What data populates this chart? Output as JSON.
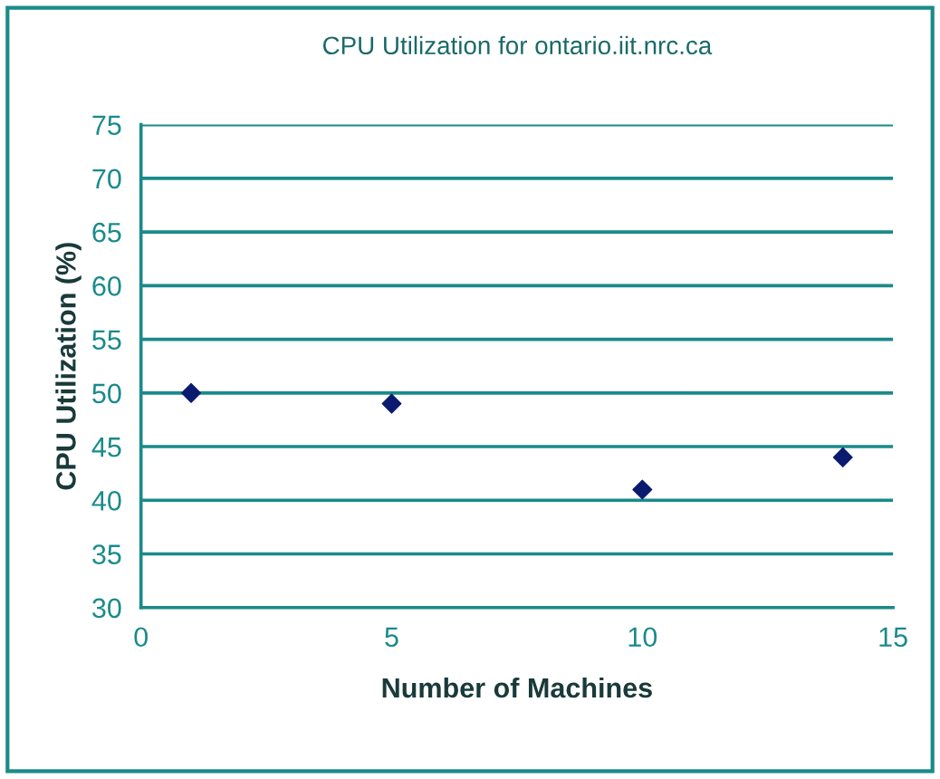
{
  "chart_data": {
    "type": "scatter",
    "title": "CPU Utilization for ontario.iit.nrc.ca",
    "xlabel": "Number of Machines",
    "ylabel": "CPU Utilization (%)",
    "x": [
      1,
      5,
      10,
      14
    ],
    "series": [
      {
        "color": "#0a1a6e",
        "values": [
          50,
          49,
          41,
          44
        ]
      }
    ],
    "xlim": [
      0,
      15
    ],
    "xticks": [
      0,
      5,
      10,
      15
    ],
    "ylim": [
      30,
      75
    ],
    "yticks": [
      30,
      35,
      40,
      45,
      50,
      55,
      60,
      65,
      70,
      75
    ],
    "grid": "y",
    "marker": "diamond",
    "legend": false
  }
}
